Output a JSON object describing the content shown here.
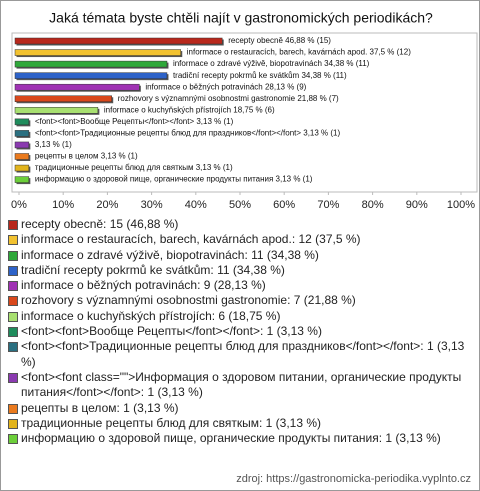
{
  "chart_data": {
    "type": "bar",
    "orientation": "horizontal",
    "title": "Jaká témata byste chtěli najít v gastronomických periodikách?",
    "values": [
      46.88,
      37.5,
      34.38,
      34.38,
      28.13,
      21.88,
      18.75,
      3.13,
      3.13,
      3.13,
      3.13,
      3.13,
      3.13
    ],
    "value_labels": [
      "recepty obecně 46,88 % (15)",
      "informace o restauracích, barech, kavárnách apod. 37,5 % (12)",
      "informace o zdravé výživě, biopotravinách 34,38 % (11)",
      "tradiční recepty pokrmů ke svátkům 34,38 % (11)",
      "informace o běžných potravinách 28,13 % (9)",
      "rozhovory s významnými osobnostmi gastronomie 21,88 % (7)",
      "informace o kuchyňských přístrojích 18,75 % (6)",
      "<font><font>Вообще Рецепты</font></font> 3,13 % (1)",
      "<font><font>Традиционные рецепты блюд для праздников</font></font> 3,13 % (1)",
      "3,13 % (1)",
      "рецепты в целом 3,13 % (1)",
      "традиционные рецепты блюд для святкым 3,13 % (1)",
      "информацию о здоровой пище, органические продукты питания 3,13 % (1)"
    ],
    "legend_labels": [
      "recepty obecně: 15 (46,88 %)",
      "informace o restauracích, barech, kavárnách apod.: 12 (37,5 %)",
      "informace o zdravé výživě, biopotravinách: 11 (34,38 %)",
      "tradiční recepty pokrmů ke svátkům: 11 (34,38 %)",
      "informace o běžných potravinách: 9 (28,13 %)",
      "rozhovory s významnými osobnostmi gastronomie: 7 (21,88 %)",
      "informace o kuchyňských přístrojích: 6 (18,75 %)",
      "<font><font>Вообще Рецепты</font></font>: 1 (3,13 %)",
      "<font><font>Традиционные рецепты блюд для праздников</font></font>: 1 (3,13 %)",
      "<font><font class=\"\">Информация о здоровом питании, органические продукты питания</font></font>: 1 (3,13 %)",
      "рецепты в целом: 1 (3,13 %)",
      "традиционные рецепты блюд для святкым: 1 (3,13 %)",
      "информацию о здоровой пище, органические продукты питания: 1 (3,13 %)"
    ],
    "colors": [
      "#b8281c",
      "#f2c230",
      "#2fa83a",
      "#2d62c8",
      "#a032b4",
      "#d9481c",
      "#a8e070",
      "#1f8c5c",
      "#2a6f80",
      "#8a3ab0",
      "#ea7a1e",
      "#e2b41c",
      "#6ccf3a"
    ],
    "xlim": [
      0,
      100
    ],
    "xticks": [
      {
        "value": 0,
        "label": "0%"
      },
      {
        "value": 10,
        "label": "10%"
      },
      {
        "value": 20,
        "label": "20%"
      },
      {
        "value": 30,
        "label": "30%"
      },
      {
        "value": 40,
        "label": "40%"
      },
      {
        "value": 50,
        "label": "50%"
      },
      {
        "value": 60,
        "label": "60%"
      },
      {
        "value": 70,
        "label": "70%"
      },
      {
        "value": 80,
        "label": "80%"
      },
      {
        "value": 90,
        "label": "90%"
      },
      {
        "value": 100,
        "label": "100%"
      }
    ],
    "source": "zdroj: https://gastronomicka-periodika.vyplnto.cz"
  }
}
